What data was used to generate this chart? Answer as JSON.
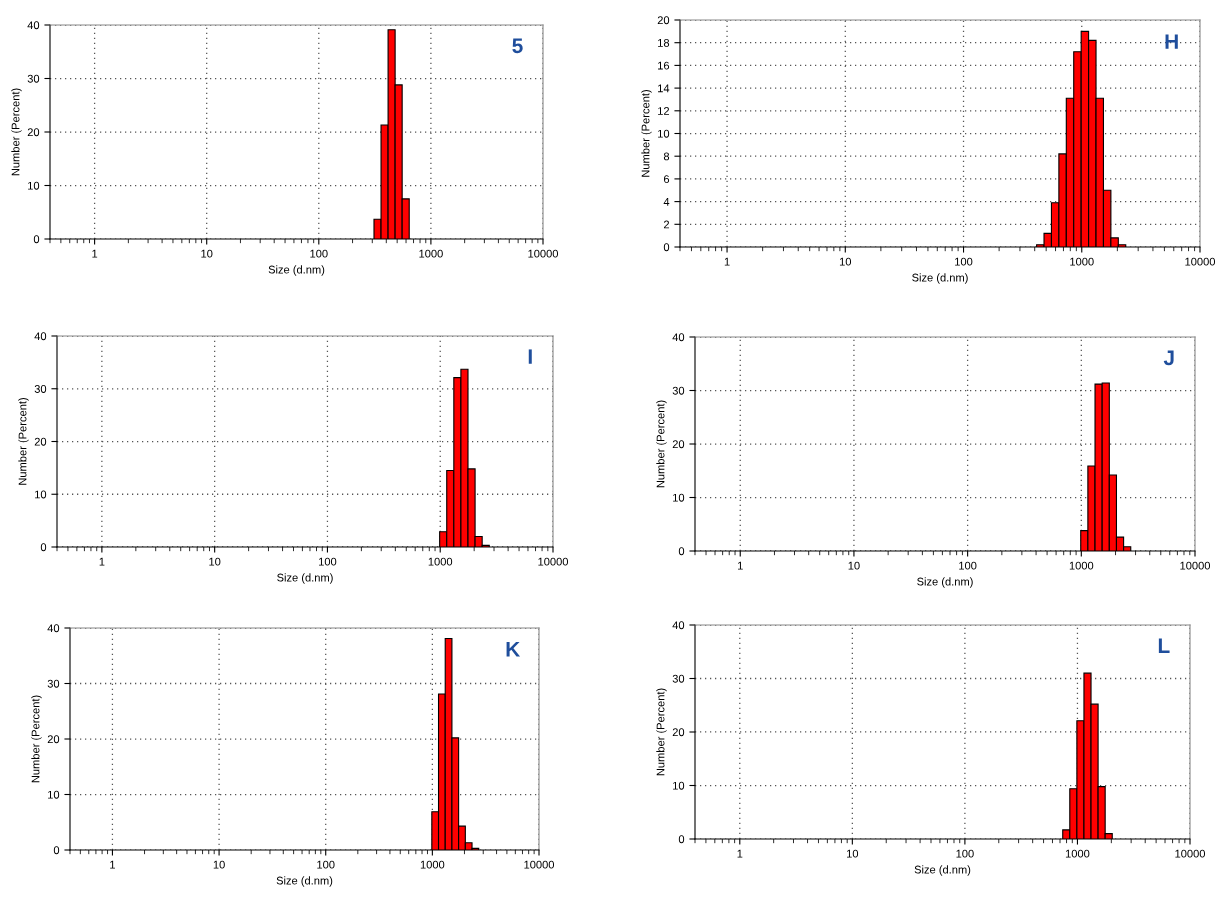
{
  "chart_data": [
    {
      "type": "histogram",
      "xlabel": "Size (d.nm)",
      "ylabel": "Number (Percent)",
      "annotations": [
        "5"
      ],
      "log": "x",
      "grid": true,
      "color": "#ff0000",
      "bins": [
        310.7,
        359.1,
        415.0,
        479.5,
        554.1,
        640.5
      ],
      "values": [
        3.7,
        21.3,
        39.1,
        28.8,
        7.5
      ],
      "xlim": [
        0.4,
        10000
      ],
      "xticks": [
        1,
        10,
        100,
        1000,
        10000
      ],
      "ylim": [
        0,
        40
      ],
      "yticks": [
        0,
        10,
        20,
        30,
        40
      ]
    },
    {
      "type": "histogram",
      "xlabel": "Size (d.nm)",
      "ylabel": "Number (Percent)",
      "annotations": [
        "H"
      ],
      "log": "x",
      "grid": true,
      "color": "#ff0000",
      "bins": [
        415.0,
        479.5,
        554.1,
        640.5,
        740.1,
        855.1,
        988.6,
        1142.4,
        1320.2,
        1525.7,
        1763.0,
        2037.7,
        2355.0,
        2721.7
      ],
      "values": [
        0.2,
        1.2,
        3.9,
        8.2,
        13.1,
        17.2,
        19.0,
        18.2,
        13.1,
        5.0,
        0.8,
        0.2,
        null
      ],
      "xlim": [
        0.4,
        10000
      ],
      "xticks": [
        1,
        10,
        100,
        1000,
        10000
      ],
      "ylim": [
        0,
        20
      ],
      "yticks": [
        0,
        2,
        4,
        6,
        8,
        10,
        12,
        14,
        16,
        18,
        20
      ]
    },
    {
      "type": "histogram",
      "xlabel": "Size (d.nm)",
      "ylabel": "Number (Percent)",
      "annotations": [
        "I"
      ],
      "log": "x",
      "grid": true,
      "color": "#ff0000",
      "bins": [
        988.6,
        1142.4,
        1320.2,
        1525.7,
        1763.0,
        2037.7,
        2355.0,
        2721.7
      ],
      "values": [
        2.9,
        14.5,
        32.1,
        33.7,
        14.8,
        2.0,
        0.3
      ],
      "xlim": [
        0.4,
        10000
      ],
      "xticks": [
        1,
        10,
        100,
        1000,
        10000
      ],
      "ylim": [
        0,
        40
      ],
      "yticks": [
        0,
        10,
        20,
        30,
        40
      ]
    },
    {
      "type": "histogram",
      "xlabel": "Size (d.nm)",
      "ylabel": "Number (Percent)",
      "annotations": [
        "J"
      ],
      "log": "x",
      "grid": true,
      "color": "#ff0000",
      "bins": [
        988.6,
        1142.4,
        1320.2,
        1525.7,
        1763.0,
        2037.7,
        2355.0,
        2721.7,
        3145.1
      ],
      "values": [
        3.8,
        15.9,
        31.2,
        31.4,
        14.2,
        2.6,
        0.8,
        null
      ],
      "xlim": [
        0.4,
        10000
      ],
      "xticks": [
        1,
        10,
        100,
        1000,
        10000
      ],
      "ylim": [
        0,
        40
      ],
      "yticks": [
        0,
        10,
        20,
        30,
        40
      ]
    },
    {
      "type": "histogram",
      "xlabel": "Size (d.nm)",
      "ylabel": "Number (Percent)",
      "annotations": [
        "K"
      ],
      "log": "x",
      "grid": true,
      "color": "#ff0000",
      "bins": [
        988.6,
        1142.4,
        1320.2,
        1525.7,
        1763.0,
        2037.7,
        2355.0,
        2721.7
      ],
      "values": [
        6.9,
        28.1,
        38.1,
        20.2,
        4.3,
        1.3,
        0.3
      ],
      "xlim": [
        0.4,
        10000
      ],
      "xticks": [
        1,
        10,
        100,
        1000,
        10000
      ],
      "ylim": [
        0,
        40
      ],
      "yticks": [
        0,
        10,
        20,
        30,
        40
      ]
    },
    {
      "type": "histogram",
      "xlabel": "Size (d.nm)",
      "ylabel": "Number (Percent)",
      "annotations": [
        "L"
      ],
      "log": "x",
      "grid": true,
      "color": "#ff0000",
      "bins": [
        740.1,
        855.1,
        988.6,
        1142.4,
        1320.2,
        1525.7,
        1763.0,
        2037.7,
        2355.0
      ],
      "values": [
        1.7,
        9.4,
        22.1,
        31.0,
        25.2,
        9.8,
        1.0,
        null
      ],
      "xlim": [
        0.4,
        10000
      ],
      "xticks": [
        1,
        10,
        100,
        1000,
        10000
      ],
      "ylim": [
        0,
        40
      ],
      "yticks": [
        0,
        10,
        20,
        30,
        40
      ]
    }
  ]
}
